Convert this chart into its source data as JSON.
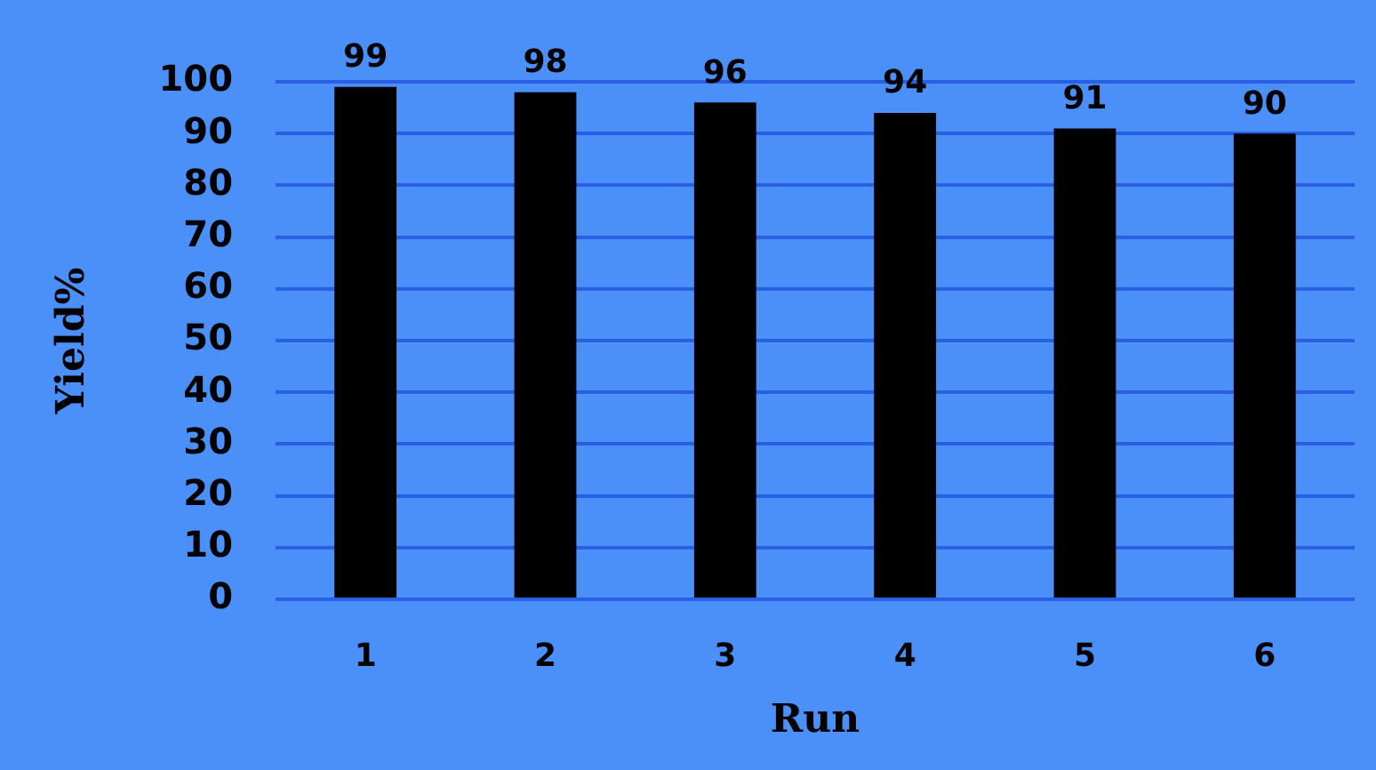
{
  "chart_data": {
    "type": "bar",
    "xlabel": "Run",
    "ylabel": "Yield%",
    "categories": [
      "1",
      "2",
      "3",
      "4",
      "5",
      "6"
    ],
    "values": [
      99,
      98,
      96,
      94,
      91,
      90
    ],
    "color": "#000000",
    "ylim": [
      0,
      100
    ],
    "yticks": [
      0,
      10,
      20,
      30,
      40,
      50,
      60,
      70,
      80,
      90,
      100
    ],
    "grid": "y",
    "data_labels": true,
    "legend": false
  }
}
